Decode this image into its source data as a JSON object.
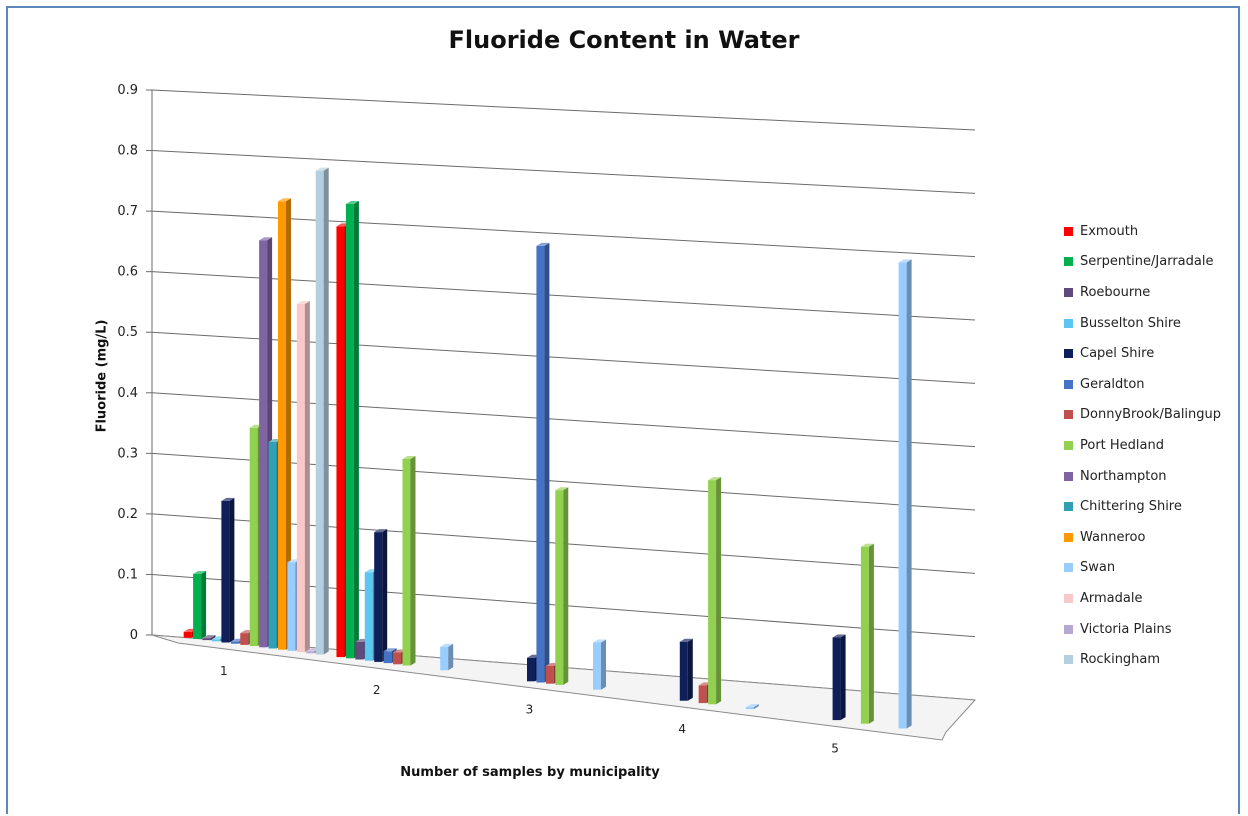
{
  "chart_data": {
    "type": "bar",
    "title": "Fluoride Content in Water",
    "xlabel": "Number of samples by municipality",
    "ylabel": "Fluoride (mg/L)",
    "ylim": [
      0,
      0.9
    ],
    "yticks": [
      "0",
      "0.1",
      "0.2",
      "0.3",
      "0.4",
      "0.5",
      "0.6",
      "0.7",
      "0.8",
      "0.9"
    ],
    "ytick_values": [
      0,
      0.1,
      0.2,
      0.3,
      0.4,
      0.5,
      0.6,
      0.7,
      0.8,
      0.9
    ],
    "categories": [
      "1",
      "2",
      "3",
      "4",
      "5"
    ],
    "grid": true,
    "legend_position": "right",
    "series": [
      {
        "name": "Exmouth",
        "color": "#ff0000",
        "values": [
          0.01,
          0.73,
          null,
          null,
          null
        ]
      },
      {
        "name": "Serpentine/Jarradale",
        "color": "#00b050",
        "values": [
          0.11,
          0.77,
          null,
          null,
          null
        ]
      },
      {
        "name": "Roebourne",
        "color": "#604a7b",
        "values": [
          0.0,
          0.03,
          null,
          null,
          null
        ]
      },
      {
        "name": "Busselton Shire",
        "color": "#5bc6f0",
        "values": [
          0.0,
          0.15,
          null,
          null,
          null
        ]
      },
      {
        "name": "Capel Shire",
        "color": "#0f1f5a",
        "values": [
          0.24,
          0.22,
          0.04,
          0.1,
          0.14
        ]
      },
      {
        "name": "Geraldton",
        "color": "#4472c4",
        "values": [
          0.0,
          0.02,
          0.74,
          null,
          null
        ]
      },
      {
        "name": "DonnyBrook/Balingup",
        "color": "#c0504d",
        "values": [
          0.02,
          0.02,
          0.03,
          0.03,
          null
        ]
      },
      {
        "name": "Port Hedland",
        "color": "#92d050",
        "values": [
          0.37,
          0.35,
          0.33,
          0.38,
          0.3
        ]
      },
      {
        "name": "Northampton",
        "color": "#8064a2",
        "values": [
          0.69,
          null,
          null,
          null,
          null
        ]
      },
      {
        "name": "Chittering Shire",
        "color": "#31a0b5",
        "values": [
          0.35,
          null,
          null,
          null,
          null
        ]
      },
      {
        "name": "Wanneroo",
        "color": "#ff9900",
        "values": [
          0.76,
          null,
          null,
          null,
          null
        ]
      },
      {
        "name": "Swan",
        "color": "#99ccff",
        "values": [
          0.15,
          0.04,
          0.08,
          0.0,
          0.79
        ]
      },
      {
        "name": "Armadale",
        "color": "#f9c9c9",
        "values": [
          0.59,
          null,
          null,
          null,
          null
        ]
      },
      {
        "name": "Victoria Plains",
        "color": "#b7a7d3",
        "values": [
          0.0,
          null,
          null,
          null,
          null
        ]
      },
      {
        "name": "Rockingham",
        "color": "#b4cfe0",
        "values": [
          0.82,
          null,
          null,
          null,
          null
        ]
      }
    ]
  }
}
